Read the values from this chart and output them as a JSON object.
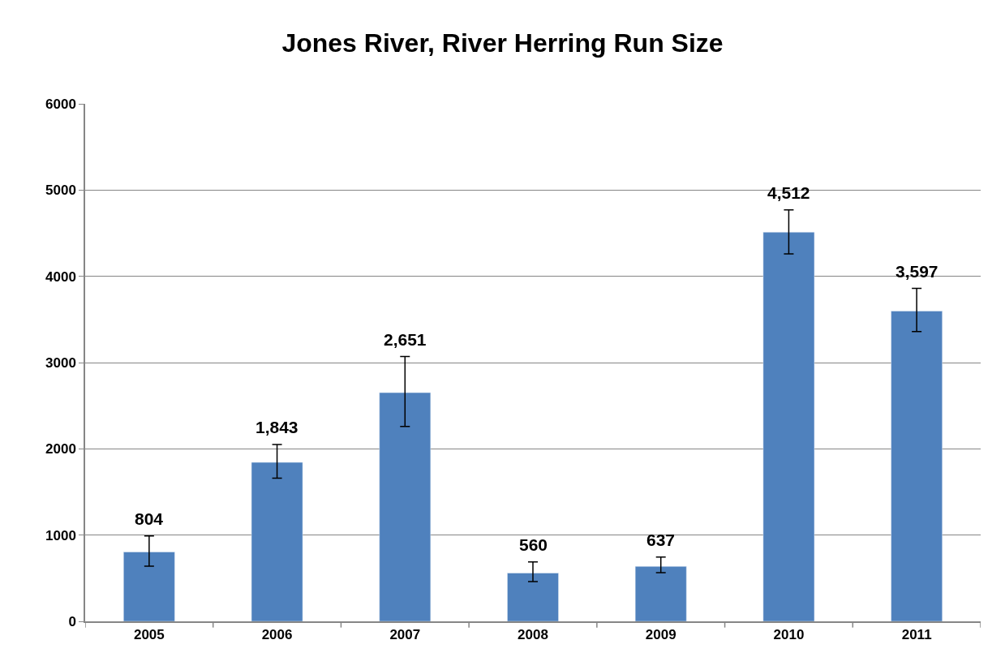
{
  "chart_data": {
    "type": "bar",
    "title": "Jones River, River Herring Run Size",
    "categories": [
      "2005",
      "2006",
      "2007",
      "2008",
      "2009",
      "2010",
      "2011"
    ],
    "values": [
      804,
      1843,
      2651,
      560,
      637,
      4512,
      3597
    ],
    "value_labels": [
      "804",
      "1,843",
      "2,651",
      "560",
      "637",
      "4,512",
      "3,597"
    ],
    "errors": [
      [
        640,
        990
      ],
      [
        1660,
        2050
      ],
      [
        2260,
        3070
      ],
      [
        460,
        690
      ],
      [
        565,
        745
      ],
      [
        4260,
        4770
      ],
      [
        3360,
        3860
      ]
    ],
    "color": "#4f81bd",
    "ylim": [
      0,
      6000
    ],
    "yticks": [
      0,
      1000,
      2000,
      3000,
      4000,
      5000,
      6000
    ],
    "grid": "y",
    "legend": false
  }
}
